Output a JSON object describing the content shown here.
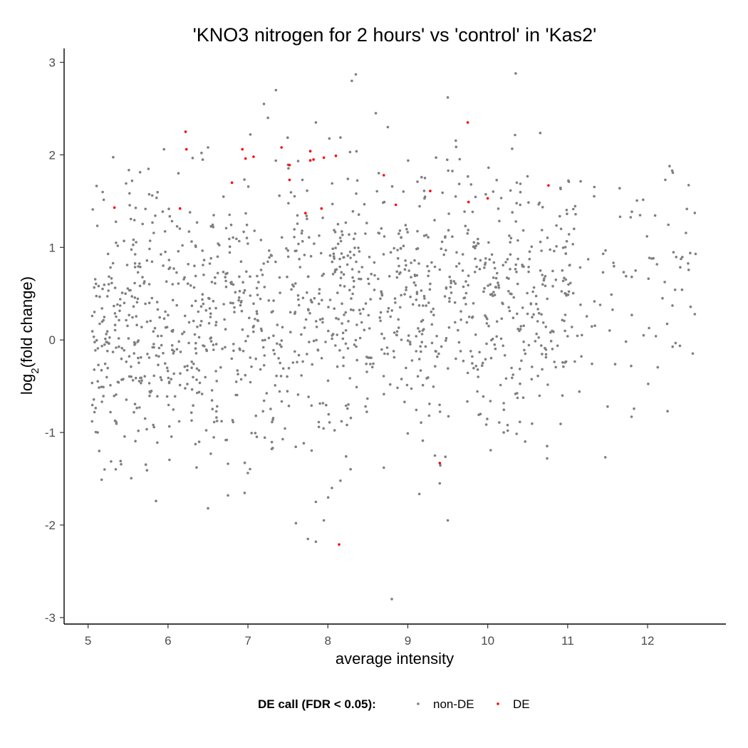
{
  "chart_data": {
    "type": "scatter",
    "title": "'KNO3 nitrogen for 2 hours' vs 'control' in 'Kas2'",
    "xlabel": "average intensity",
    "ylabel_main": "log",
    "ylabel_sub": "2",
    "ylabel_rest": "(fold change)",
    "xlim": [
      4.7,
      12.98
    ],
    "ylim": [
      -3.07,
      3.15
    ],
    "xticks": [
      5,
      6,
      7,
      8,
      9,
      10,
      11,
      12
    ],
    "yticks": [
      -3,
      -2,
      -1,
      0,
      1,
      2,
      3
    ],
    "grid": false,
    "legend": {
      "title": "DE call (FDR < 0.05):",
      "position": "bottom",
      "entries": [
        {
          "label": "non-DE",
          "color": "#7f7f7f"
        },
        {
          "label": "DE",
          "color": "#ff0000"
        }
      ]
    },
    "series": [
      {
        "name": "non-DE",
        "color": "#7f7f7f",
        "n_points": 1400,
        "x_range": [
          5.05,
          12.6
        ],
        "y_range": [
          -2.8,
          2.88
        ],
        "outliers": [
          [
            8.35,
            2.87
          ],
          [
            8.3,
            2.8
          ],
          [
            10.35,
            2.88
          ],
          [
            7.35,
            2.7
          ],
          [
            9.5,
            2.62
          ],
          [
            7.2,
            2.55
          ],
          [
            7.25,
            2.4
          ],
          [
            8.6,
            2.45
          ],
          [
            8.75,
            2.3
          ],
          [
            7.85,
            2.35
          ],
          [
            6.5,
            2.08
          ],
          [
            5.95,
            2.06
          ],
          [
            5.55,
            1.72
          ],
          [
            5.35,
            1.05
          ],
          [
            5.45,
            1.07
          ],
          [
            12.6,
            0.93
          ],
          [
            12.05,
            0.88
          ],
          [
            11.65,
            1.64
          ],
          [
            12.25,
            -0.77
          ],
          [
            11.8,
            -0.83
          ],
          [
            11.5,
            -0.72
          ],
          [
            11.95,
            0.05
          ],
          [
            11.85,
            0.75
          ],
          [
            11.0,
            0.04
          ],
          [
            5.05,
            -0.88
          ],
          [
            5.08,
            -0.78
          ],
          [
            5.12,
            -1.0
          ],
          [
            5.17,
            -1.51
          ],
          [
            5.28,
            -0.78
          ],
          [
            5.85,
            -1.74
          ],
          [
            6.5,
            -1.82
          ],
          [
            6.75,
            -1.68
          ],
          [
            7.6,
            -1.98
          ],
          [
            7.75,
            -2.15
          ],
          [
            7.85,
            -2.18
          ],
          [
            7.85,
            -1.75
          ],
          [
            7.95,
            -1.95
          ],
          [
            8.05,
            -1.6
          ],
          [
            9.5,
            -1.95
          ],
          [
            8.8,
            -2.8
          ],
          [
            8.7,
            -1.38
          ],
          [
            9.4,
            -1.55
          ],
          [
            10.2,
            -1.0
          ],
          [
            10.25,
            -0.98
          ]
        ]
      },
      {
        "name": "DE",
        "color": "#ff0000",
        "points": [
          [
            5.33,
            1.43
          ],
          [
            6.15,
            1.42
          ],
          [
            6.22,
            2.25
          ],
          [
            6.23,
            2.06
          ],
          [
            6.8,
            1.7
          ],
          [
            6.93,
            2.06
          ],
          [
            6.97,
            1.96
          ],
          [
            7.07,
            1.98
          ],
          [
            7.42,
            2.08
          ],
          [
            7.52,
            1.89
          ],
          [
            7.52,
            1.73
          ],
          [
            7.72,
            1.37
          ],
          [
            7.78,
            2.04
          ],
          [
            7.78,
            1.94
          ],
          [
            7.82,
            1.95
          ],
          [
            7.92,
            1.42
          ],
          [
            7.95,
            1.97
          ],
          [
            8.1,
            1.99
          ],
          [
            8.7,
            1.78
          ],
          [
            8.85,
            1.46
          ],
          [
            9.28,
            1.61
          ],
          [
            9.75,
            2.35
          ],
          [
            9.76,
            1.49
          ],
          [
            10.0,
            1.53
          ],
          [
            10.76,
            1.67
          ],
          [
            9.4,
            -1.33
          ],
          [
            8.14,
            -2.21
          ]
        ]
      }
    ]
  }
}
